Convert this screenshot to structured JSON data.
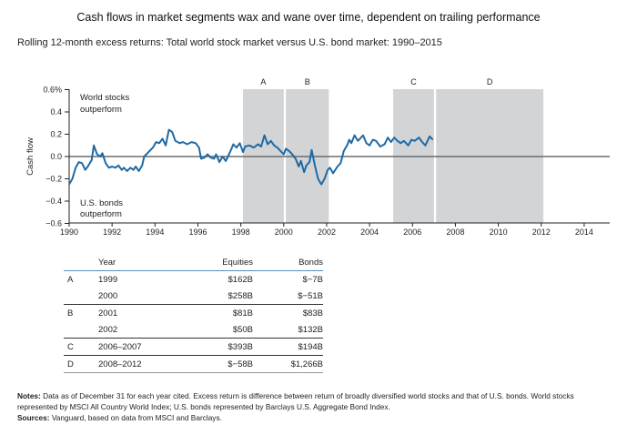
{
  "title": "Cash flows in market segments wax and wane over time, dependent on trailing performance",
  "subtitle": "Rolling 12-month excess returns: Total world stock market versus U.S. bond market: 1990–2015",
  "chart_data": {
    "type": "line",
    "title": "Rolling 12-month excess returns: Total world stock market versus U.S. bond market: 1990–2015",
    "xlabel": "",
    "ylabel": "Cash flow",
    "xlim": [
      1990,
      2015.2
    ],
    "ylim": [
      -0.6,
      0.6
    ],
    "x_ticks": [
      "1990",
      "1992",
      "1994",
      "1996",
      "1998",
      "2000",
      "2002",
      "2004",
      "2006",
      "2008",
      "2010",
      "2012",
      "2014"
    ],
    "y_ticks": [
      "0.6%",
      "0.4",
      "0.2",
      "0.0",
      "−0.2",
      "−0.4",
      "−0.6"
    ],
    "grid": false,
    "zero_line": true,
    "annotations": [
      {
        "text_lines": [
          "World stocks",
          "outperform"
        ],
        "position": "top-left"
      },
      {
        "text_lines": [
          "U.S. bonds",
          "outperform"
        ],
        "position": "bottom-left"
      }
    ],
    "shaded_regions": [
      {
        "label": "A",
        "start": 1998.1,
        "end": 2000.0
      },
      {
        "label": "B",
        "start": 2000.1,
        "end": 2002.1
      },
      {
        "label": "C",
        "start": 2005.1,
        "end": 2007.0
      },
      {
        "label": "D",
        "start": 2007.1,
        "end": 2012.1
      }
    ],
    "series": [
      {
        "name": "Rolling 12-month excess return (world stocks vs. U.S. bonds)",
        "color": "#1f6aa5",
        "points": [
          [
            1990.0,
            -0.25
          ],
          [
            1990.15,
            -0.2
          ],
          [
            1990.3,
            -0.1
          ],
          [
            1990.45,
            -0.05
          ],
          [
            1990.6,
            -0.06
          ],
          [
            1990.75,
            -0.12
          ],
          [
            1990.9,
            -0.08
          ],
          [
            1991.05,
            -0.03
          ],
          [
            1991.15,
            0.1
          ],
          [
            1991.3,
            0.02
          ],
          [
            1991.45,
            0.0
          ],
          [
            1991.55,
            0.03
          ],
          [
            1991.7,
            -0.06
          ],
          [
            1991.85,
            -0.1
          ],
          [
            1992.0,
            -0.09
          ],
          [
            1992.15,
            -0.1
          ],
          [
            1992.3,
            -0.08
          ],
          [
            1992.45,
            -0.12
          ],
          [
            1992.55,
            -0.1
          ],
          [
            1992.7,
            -0.13
          ],
          [
            1992.85,
            -0.1
          ],
          [
            1993.0,
            -0.12
          ],
          [
            1993.1,
            -0.09
          ],
          [
            1993.25,
            -0.13
          ],
          [
            1993.4,
            -0.08
          ],
          [
            1993.5,
            0.0
          ],
          [
            1993.7,
            0.04
          ],
          [
            1993.9,
            0.08
          ],
          [
            1994.05,
            0.13
          ],
          [
            1994.2,
            0.12
          ],
          [
            1994.35,
            0.16
          ],
          [
            1994.5,
            0.1
          ],
          [
            1994.65,
            0.24
          ],
          [
            1994.8,
            0.22
          ],
          [
            1994.95,
            0.14
          ],
          [
            1995.15,
            0.12
          ],
          [
            1995.3,
            0.13
          ],
          [
            1995.5,
            0.11
          ],
          [
            1995.7,
            0.13
          ],
          [
            1995.9,
            0.12
          ],
          [
            1996.05,
            0.08
          ],
          [
            1996.15,
            -0.02
          ],
          [
            1996.3,
            -0.01
          ],
          [
            1996.45,
            0.02
          ],
          [
            1996.6,
            -0.01
          ],
          [
            1996.75,
            -0.02
          ],
          [
            1996.85,
            0.02
          ],
          [
            1997.0,
            -0.05
          ],
          [
            1997.15,
            0.0
          ],
          [
            1997.3,
            -0.04
          ],
          [
            1997.5,
            0.04
          ],
          [
            1997.65,
            0.11
          ],
          [
            1997.8,
            0.08
          ],
          [
            1997.95,
            0.12
          ],
          [
            1998.1,
            0.04
          ],
          [
            1998.2,
            0.09
          ],
          [
            1998.4,
            0.1
          ],
          [
            1998.6,
            0.08
          ],
          [
            1998.8,
            0.11
          ],
          [
            1998.95,
            0.09
          ],
          [
            1999.1,
            0.19
          ],
          [
            1999.25,
            0.11
          ],
          [
            1999.4,
            0.14
          ],
          [
            1999.55,
            0.1
          ],
          [
            1999.7,
            0.08
          ],
          [
            1999.85,
            0.05
          ],
          [
            2000.0,
            0.02
          ],
          [
            2000.1,
            0.07
          ],
          [
            2000.25,
            0.05
          ],
          [
            2000.4,
            0.02
          ],
          [
            2000.55,
            -0.02
          ],
          [
            2000.7,
            -0.09
          ],
          [
            2000.8,
            -0.04
          ],
          [
            2000.95,
            -0.14
          ],
          [
            2001.05,
            -0.08
          ],
          [
            2001.2,
            -0.05
          ],
          [
            2001.3,
            0.06
          ],
          [
            2001.45,
            -0.08
          ],
          [
            2001.6,
            -0.2
          ],
          [
            2001.75,
            -0.25
          ],
          [
            2001.9,
            -0.2
          ],
          [
            2002.05,
            -0.12
          ],
          [
            2002.15,
            -0.1
          ],
          [
            2002.3,
            -0.15
          ],
          [
            2002.5,
            -0.09
          ],
          [
            2002.65,
            -0.06
          ],
          [
            2002.8,
            0.05
          ],
          [
            2002.95,
            0.1
          ],
          [
            2003.05,
            0.15
          ],
          [
            2003.15,
            0.12
          ],
          [
            2003.3,
            0.19
          ],
          [
            2003.45,
            0.14
          ],
          [
            2003.55,
            0.16
          ],
          [
            2003.7,
            0.19
          ],
          [
            2003.85,
            0.12
          ],
          [
            2004.0,
            0.1
          ],
          [
            2004.15,
            0.15
          ],
          [
            2004.3,
            0.14
          ],
          [
            2004.5,
            0.09
          ],
          [
            2004.7,
            0.11
          ],
          [
            2004.85,
            0.17
          ],
          [
            2005.0,
            0.13
          ],
          [
            2005.15,
            0.17
          ],
          [
            2005.3,
            0.14
          ],
          [
            2005.45,
            0.12
          ],
          [
            2005.6,
            0.14
          ],
          [
            2005.8,
            0.1
          ],
          [
            2005.95,
            0.15
          ],
          [
            2006.1,
            0.14
          ],
          [
            2006.3,
            0.17
          ],
          [
            2006.45,
            0.13
          ],
          [
            2006.6,
            0.1
          ],
          [
            2006.8,
            0.18
          ],
          [
            2006.95,
            0.15
          ]
        ]
      }
    ]
  },
  "table": {
    "headers": [
      "",
      "Year",
      "Equities",
      "Bonds"
    ],
    "rows": [
      {
        "label": "A",
        "year": "1999",
        "equities": "$162B",
        "bonds": "$−7B"
      },
      {
        "label": "",
        "year": "2000",
        "equities": "$258B",
        "bonds": "$−51B"
      },
      {
        "label": "B",
        "year": "2001",
        "equities": "$81B",
        "bonds": "$83B"
      },
      {
        "label": "",
        "year": "2002",
        "equities": "$50B",
        "bonds": "$132B"
      },
      {
        "label": "C",
        "year": "2006–2007",
        "equities": "$393B",
        "bonds": "$194B"
      },
      {
        "label": "D",
        "year": "2008–2012",
        "equities": "$−58B",
        "bonds": "$1,266B"
      }
    ]
  },
  "notes": {
    "notes_label": "Notes:",
    "notes_text": " Data as of December 31 for each year cited. Excess return is difference between return of broadly diversified world stocks and that of U.S. bonds. World stocks represented by MSCI All Country World Index; U.S. bonds represented by Barclays U.S. Aggregate Bond Index.",
    "sources_label": "Sources:",
    "sources_text": " Vanguard, based on data from MSCI and Barclays."
  }
}
